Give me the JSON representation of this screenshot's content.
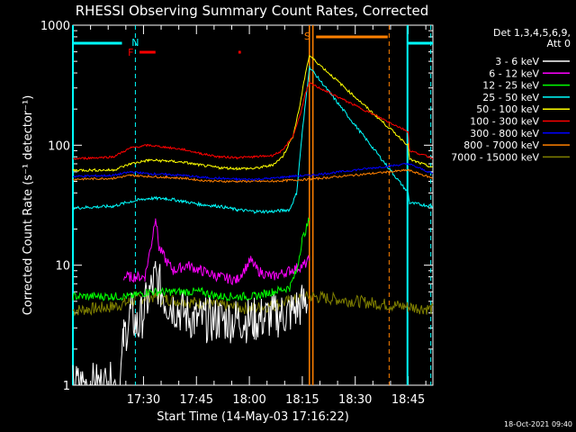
{
  "chart_data": {
    "type": "line",
    "title": "RHESSI Observing Summary Count Rates, Corrected",
    "xlabel": "Start Time (14-May-03 17:16:22)",
    "ylabel": "Corrected Count Rate (s⁻¹ detector⁻¹)",
    "yscale": "log",
    "ylim": [
      1,
      1000
    ],
    "xlim_minutes": [
      -6.4,
      95.6
    ],
    "x_ticks": [
      {
        "label": "17:30",
        "min": 13.6
      },
      {
        "label": "17:45",
        "min": 28.6
      },
      {
        "label": "18:00",
        "min": 43.6
      },
      {
        "label": "18:15",
        "min": 58.6
      },
      {
        "label": "18:30",
        "min": 73.6
      },
      {
        "label": "18:45",
        "min": 88.6
      }
    ],
    "y_ticks": [
      {
        "label": "1",
        "value": 1
      },
      {
        "label": "10",
        "value": 10
      },
      {
        "label": "100",
        "value": 100
      },
      {
        "label": "1000",
        "value": 1000
      }
    ],
    "legend_title": [
      "Det 1,3,4,5,6,9,",
      "Att 0"
    ],
    "legend_placement": "right",
    "series": [
      {
        "name": "3 - 6 keV",
        "color": "#ffffff",
        "x": [
          -6.4,
          7,
          8,
          10,
          12,
          17,
          20,
          28,
          35,
          45,
          55,
          60,
          61,
          88,
          90,
          95.6
        ],
        "y": [
          1,
          1,
          2.5,
          4,
          3,
          8,
          5,
          3.5,
          3.5,
          3.5,
          4,
          5,
          null,
          null,
          null,
          null
        ]
      },
      {
        "name": "6 - 12 keV",
        "color": "#ff00ff",
        "x": [
          8,
          10,
          14,
          16,
          17,
          18,
          20,
          22,
          26,
          30,
          35,
          40,
          44,
          46,
          50,
          55,
          59,
          60.6
        ],
        "y": [
          8,
          8,
          8,
          16,
          26,
          14,
          11,
          9,
          10,
          9,
          8,
          7.5,
          11,
          9,
          8,
          9,
          10,
          11
        ]
      },
      {
        "name": "12 - 25 keV",
        "color": "#00ff00",
        "x": [
          -6.4,
          5,
          10,
          15,
          20,
          25,
          30,
          35,
          40,
          45,
          50,
          55,
          57,
          58.5,
          60.6
        ],
        "y": [
          5.5,
          5.5,
          5.5,
          6,
          6,
          6,
          6,
          5.5,
          5.5,
          5.5,
          6,
          6.5,
          9,
          16,
          24
        ]
      },
      {
        "name": "25 - 50 keV",
        "color": "#00ffff",
        "x": [
          -6.4,
          5,
          10,
          15,
          20,
          25,
          30,
          35,
          40,
          45,
          50,
          55,
          57,
          58.5,
          60.6,
          88.6,
          89,
          95.6
        ],
        "y": [
          30,
          31,
          34,
          36,
          36,
          34,
          32,
          31,
          29,
          28,
          28,
          29,
          40,
          120,
          450,
          40,
          33,
          31
        ]
      },
      {
        "name": "50 - 100 keV",
        "color": "#ffff00",
        "x": [
          -6.4,
          5,
          10,
          15,
          20,
          25,
          30,
          35,
          40,
          45,
          50,
          53,
          56,
          58,
          59.5,
          60.6,
          88.6,
          89,
          95.6
        ],
        "y": [
          62,
          62,
          70,
          75,
          74,
          72,
          68,
          65,
          64,
          64,
          68,
          80,
          120,
          220,
          400,
          560,
          100,
          76,
          65
        ]
      },
      {
        "name": "100 - 300 keV",
        "color": "#ff0000",
        "x": [
          -6.4,
          5,
          10,
          15,
          20,
          25,
          30,
          35,
          40,
          45,
          50,
          53,
          56,
          58,
          59.5,
          60.6,
          88.6,
          89,
          95.6
        ],
        "y": [
          77,
          80,
          95,
          100,
          96,
          92,
          85,
          80,
          79,
          80,
          82,
          90,
          120,
          180,
          270,
          330,
          130,
          90,
          78
        ]
      },
      {
        "name": "300 - 800 keV",
        "color": "#0000ff",
        "x": [
          -6.4,
          5,
          10,
          15,
          20,
          25,
          30,
          35,
          40,
          45,
          50,
          55,
          60.6,
          88.6,
          95.6
        ],
        "y": [
          55,
          56,
          60,
          58,
          57,
          56,
          54,
          53,
          52,
          52,
          53,
          55,
          56,
          70,
          58
        ]
      },
      {
        "name": "800 - 7000 keV",
        "color": "#ff8000",
        "x": [
          -6.4,
          5,
          10,
          15,
          20,
          25,
          30,
          35,
          40,
          45,
          50,
          55,
          60.6,
          88.6,
          95.6
        ],
        "y": [
          52,
          53,
          56,
          55,
          54,
          53,
          51,
          50,
          50,
          50,
          50,
          51,
          52,
          62,
          53
        ]
      },
      {
        "name": "7000 - 15000 keV",
        "color": "#808000",
        "x": [
          -6.4,
          5,
          10,
          15,
          20,
          25,
          30,
          35,
          40,
          45,
          50,
          55,
          60.6,
          88.6,
          95.6
        ],
        "y": [
          4.2,
          4.5,
          5,
          5.5,
          5.2,
          5,
          4.8,
          4.6,
          4.4,
          4.4,
          4.6,
          5,
          5.5,
          4.5,
          4.3
        ]
      }
    ],
    "annotations": [
      {
        "label": "N",
        "color": "#00ffff"
      },
      {
        "label": "F",
        "color": "#ff0000"
      },
      {
        "label": "S",
        "color": "#ff8000"
      }
    ]
  },
  "timestamp": "18-Oct-2021 09:40"
}
